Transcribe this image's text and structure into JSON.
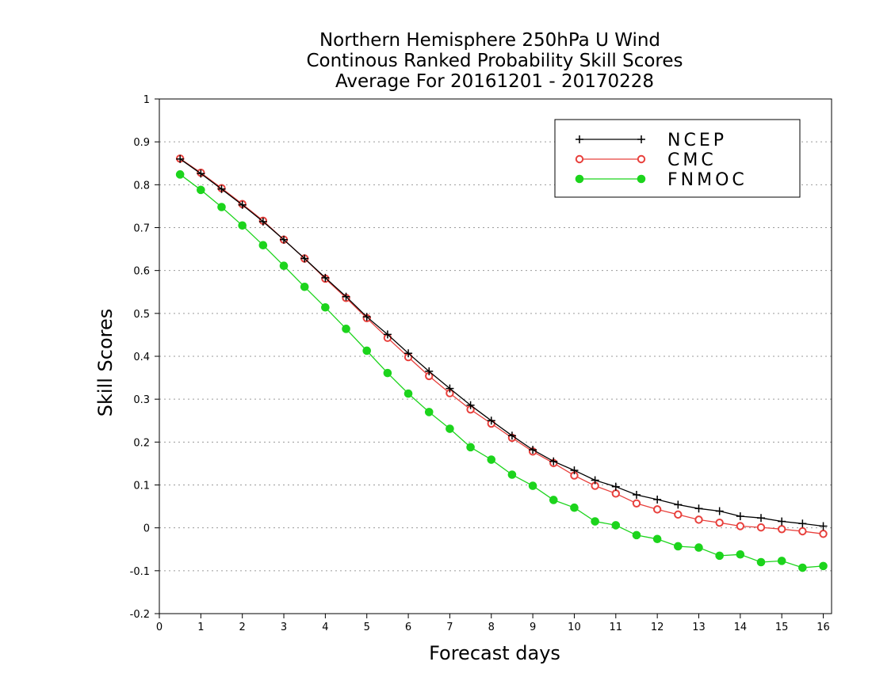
{
  "chart_data": {
    "type": "line",
    "title_lines": [
      "Northern Hemisphere 250hPa U Wind",
      "Continous Ranked Probability Skill Scores",
      "Average For 20161201 - 20170228"
    ],
    "xlabel": "Forecast days",
    "ylabel": "Skill Scores",
    "xlim": [
      0,
      16.2
    ],
    "ylim": [
      -0.2,
      1
    ],
    "xticks": [
      0,
      1,
      2,
      3,
      4,
      5,
      6,
      7,
      8,
      9,
      10,
      11,
      12,
      13,
      14,
      15,
      16
    ],
    "yticks": [
      -0.2,
      -0.1,
      0,
      0.1,
      0.2,
      0.3,
      0.4,
      0.5,
      0.6,
      0.7,
      0.8,
      0.9,
      1
    ],
    "ytick_labels": [
      "-0.2",
      "-0.1",
      "0",
      "0.1",
      "0.2",
      "0.3",
      "0.4",
      "0.5",
      "0.6",
      "0.7",
      "0.8",
      "0.9",
      "1"
    ],
    "grid": "horizontal dotted",
    "legend_position": "top-right",
    "x": [
      0.5,
      1,
      1.5,
      2,
      2.5,
      3,
      3.5,
      4,
      4.5,
      5,
      5.5,
      6,
      6.5,
      7,
      7.5,
      8,
      8.5,
      9,
      9.5,
      10,
      10.5,
      11,
      11.5,
      12,
      12.5,
      13,
      13.5,
      14,
      14.5,
      15,
      15.5,
      16
    ],
    "series": [
      {
        "name": "NCEP",
        "color": "#000000",
        "marker": "plus",
        "values": [
          0.86,
          0.826,
          0.79,
          0.753,
          0.714,
          0.672,
          0.628,
          0.583,
          0.539,
          0.492,
          0.451,
          0.407,
          0.365,
          0.325,
          0.286,
          0.25,
          0.215,
          0.182,
          0.155,
          0.134,
          0.111,
          0.096,
          0.077,
          0.066,
          0.054,
          0.045,
          0.039,
          0.027,
          0.023,
          0.015,
          0.01,
          0.004
        ]
      },
      {
        "name": "CMC",
        "color": "#e8403c",
        "marker": "open-circle",
        "values": [
          0.861,
          0.828,
          0.792,
          0.755,
          0.716,
          0.672,
          0.628,
          0.581,
          0.536,
          0.489,
          0.443,
          0.398,
          0.354,
          0.314,
          0.276,
          0.243,
          0.21,
          0.178,
          0.151,
          0.122,
          0.098,
          0.08,
          0.057,
          0.043,
          0.031,
          0.019,
          0.012,
          0.004,
          0.001,
          -0.003,
          -0.008,
          -0.014
        ]
      },
      {
        "name": "FNMOC",
        "color": "#1cd41c",
        "marker": "filled-circle",
        "values": [
          0.824,
          0.788,
          0.748,
          0.705,
          0.659,
          0.611,
          0.562,
          0.514,
          0.464,
          0.413,
          0.361,
          0.313,
          0.27,
          0.231,
          0.188,
          0.159,
          0.124,
          0.098,
          0.065,
          0.047,
          0.015,
          0.006,
          -0.017,
          -0.026,
          -0.043,
          -0.046,
          -0.065,
          -0.062,
          -0.08,
          -0.077,
          -0.093,
          -0.089
        ]
      }
    ]
  }
}
